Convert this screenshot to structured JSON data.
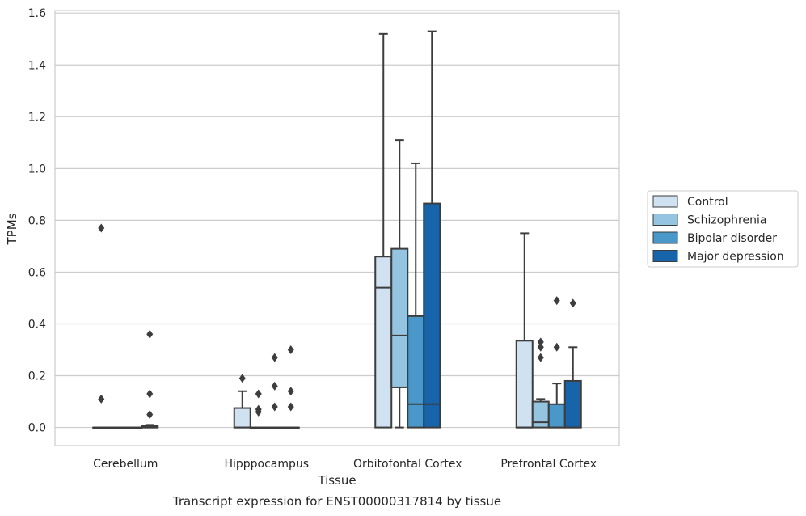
{
  "chart_data": {
    "type": "box",
    "title": "",
    "caption": "Transcript expression for ENST00000317814 by tissue",
    "xlabel": "Tissue",
    "ylabel": "TPMs",
    "ylim": [
      -0.07,
      1.61
    ],
    "yticks": [
      0.0,
      0.2,
      0.4,
      0.6,
      0.8,
      1.0,
      1.2,
      1.4,
      1.6
    ],
    "ytick_labels": [
      "0.0",
      "0.2",
      "0.4",
      "0.6",
      "0.8",
      "1.0",
      "1.2",
      "1.4",
      "1.6"
    ],
    "grid": "horizontal",
    "legend_position": "right",
    "categories": [
      "Cerebellum",
      "Hipppocampus",
      "Orbitofontal Cortex",
      "Prefrontal Cortex"
    ],
    "series": [
      {
        "name": "Control",
        "color": "#d0e1f2",
        "boxes": [
          {
            "q1": 0.0,
            "median": 0.0,
            "q3": 0.0,
            "whisker_low": 0.0,
            "whisker_high": 0.0,
            "outliers": [
              0.77,
              0.11
            ]
          },
          {
            "q1": 0.0,
            "median": 0.0,
            "q3": 0.075,
            "whisker_low": 0.0,
            "whisker_high": 0.14,
            "outliers": [
              0.19
            ]
          },
          {
            "q1": 0.0,
            "median": 0.54,
            "q3": 0.66,
            "whisker_low": 0.0,
            "whisker_high": 1.52,
            "outliers": []
          },
          {
            "q1": 0.0,
            "median": 0.0,
            "q3": 0.335,
            "whisker_low": 0.0,
            "whisker_high": 0.75,
            "outliers": []
          }
        ]
      },
      {
        "name": "Schizophrenia",
        "color": "#94c4df",
        "boxes": [
          {
            "q1": 0.0,
            "median": 0.0,
            "q3": 0.0,
            "whisker_low": 0.0,
            "whisker_high": 0.0,
            "outliers": []
          },
          {
            "q1": 0.0,
            "median": 0.0,
            "q3": 0.0,
            "whisker_low": 0.0,
            "whisker_high": 0.0,
            "outliers": [
              0.13,
              0.07,
              0.06
            ]
          },
          {
            "q1": 0.155,
            "median": 0.355,
            "q3": 0.69,
            "whisker_low": 0.0,
            "whisker_high": 1.11,
            "outliers": []
          },
          {
            "q1": 0.0,
            "median": 0.02,
            "q3": 0.1,
            "whisker_low": 0.0,
            "whisker_high": 0.11,
            "outliers": [
              0.33,
              0.31,
              0.27
            ]
          }
        ]
      },
      {
        "name": "Bipolar disorder",
        "color": "#4a98c9",
        "boxes": [
          {
            "q1": 0.0,
            "median": 0.0,
            "q3": 0.0,
            "whisker_low": 0.0,
            "whisker_high": 0.0,
            "outliers": []
          },
          {
            "q1": 0.0,
            "median": 0.0,
            "q3": 0.0,
            "whisker_low": 0.0,
            "whisker_high": 0.0,
            "outliers": [
              0.27,
              0.16,
              0.08
            ]
          },
          {
            "q1": 0.0,
            "median": 0.09,
            "q3": 0.43,
            "whisker_low": 0.0,
            "whisker_high": 1.02,
            "outliers": []
          },
          {
            "q1": 0.0,
            "median": 0.0,
            "q3": 0.09,
            "whisker_low": 0.0,
            "whisker_high": 0.17,
            "outliers": [
              0.49,
              0.31
            ]
          }
        ]
      },
      {
        "name": "Major depression",
        "color": "#1764ab",
        "boxes": [
          {
            "q1": 0.0,
            "median": 0.0,
            "q3": 0.005,
            "whisker_low": 0.0,
            "whisker_high": 0.01,
            "outliers": [
              0.36,
              0.13,
              0.05
            ]
          },
          {
            "q1": 0.0,
            "median": 0.0,
            "q3": 0.0,
            "whisker_low": 0.0,
            "whisker_high": 0.0,
            "outliers": [
              0.3,
              0.14,
              0.08
            ]
          },
          {
            "q1": 0.0,
            "median": 0.09,
            "q3": 0.865,
            "whisker_low": 0.0,
            "whisker_high": 1.53,
            "outliers": []
          },
          {
            "q1": 0.0,
            "median": 0.0,
            "q3": 0.18,
            "whisker_low": 0.0,
            "whisker_high": 0.31,
            "outliers": [
              0.48
            ]
          }
        ]
      }
    ]
  }
}
